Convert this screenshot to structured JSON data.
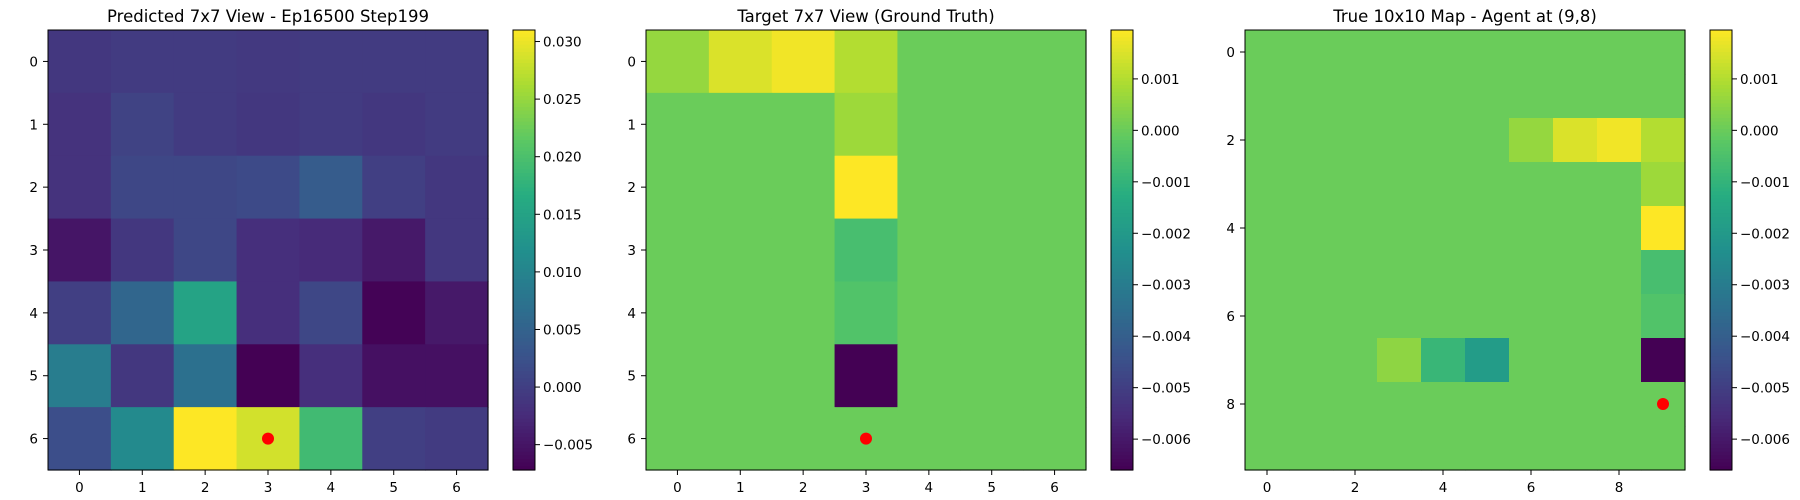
{
  "chart_data": [
    {
      "type": "heatmap",
      "title": "Predicted 7x7 View - Ep16500 Step199",
      "rows": 7,
      "cols": 7,
      "x_ticks": [
        "0",
        "1",
        "2",
        "3",
        "4",
        "5",
        "6"
      ],
      "y_ticks": [
        "0",
        "1",
        "2",
        "3",
        "4",
        "5",
        "6"
      ],
      "colorscale": "viridis",
      "vmin": -0.0072,
      "vmax": 0.031,
      "colorbar_ticks": [
        {
          "value": 0.03,
          "label": "0.030"
        },
        {
          "value": 0.025,
          "label": "0.025"
        },
        {
          "value": 0.02,
          "label": "0.020"
        },
        {
          "value": 0.015,
          "label": "0.015"
        },
        {
          "value": 0.01,
          "label": "0.010"
        },
        {
          "value": 0.005,
          "label": "0.005"
        },
        {
          "value": 0.0,
          "label": "0.000"
        },
        {
          "value": -0.005,
          "label": "−0.005"
        }
      ],
      "values": [
        [
          -0.001,
          -0.0005,
          -0.0005,
          -0.0008,
          -0.0005,
          -0.0005,
          -0.0005
        ],
        [
          -0.0015,
          0.0005,
          -0.0005,
          -0.001,
          -0.0005,
          -0.001,
          -0.0005
        ],
        [
          -0.0015,
          0.001,
          0.001,
          0.0015,
          0.004,
          0.0,
          -0.001
        ],
        [
          -0.005,
          -0.001,
          0.001,
          -0.002,
          -0.0025,
          -0.0045,
          -0.001
        ],
        [
          0.0,
          0.0055,
          0.015,
          -0.002,
          0.001,
          -0.007,
          -0.0045
        ],
        [
          0.009,
          -0.001,
          0.007,
          -0.0072,
          -0.002,
          -0.0055,
          -0.0055
        ],
        [
          0.002,
          0.011,
          0.031,
          0.0285,
          0.019,
          0.0,
          -0.0005
        ]
      ],
      "agent": {
        "x": 3,
        "y": 6
      }
    },
    {
      "type": "heatmap",
      "title": "Target 7x7 View (Ground Truth)",
      "rows": 7,
      "cols": 7,
      "x_ticks": [
        "0",
        "1",
        "2",
        "3",
        "4",
        "5",
        "6"
      ],
      "y_ticks": [
        "0",
        "1",
        "2",
        "3",
        "4",
        "5",
        "6"
      ],
      "colorscale": "viridis",
      "vmin": -0.0066,
      "vmax": 0.00195,
      "colorbar_ticks": [
        {
          "value": 0.001,
          "label": "0.001"
        },
        {
          "value": 0.0,
          "label": "0.000"
        },
        {
          "value": -0.001,
          "label": "−0.001"
        },
        {
          "value": -0.002,
          "label": "−0.002"
        },
        {
          "value": -0.003,
          "label": "−0.003"
        },
        {
          "value": -0.004,
          "label": "−0.004"
        },
        {
          "value": -0.005,
          "label": "−0.005"
        },
        {
          "value": -0.006,
          "label": "−0.006"
        }
      ],
      "values": [
        [
          0.0006,
          0.0015,
          0.0018,
          0.001,
          0.0,
          0.0,
          0.0
        ],
        [
          0.0,
          0.0,
          0.0,
          0.0007,
          0.0,
          0.0,
          0.0
        ],
        [
          0.0,
          0.0,
          0.0,
          0.00195,
          0.0,
          0.0,
          0.0
        ],
        [
          0.0,
          0.0,
          0.0,
          -0.0006,
          0.0,
          0.0,
          0.0
        ],
        [
          0.0,
          0.0,
          0.0,
          -0.0004,
          0.0,
          0.0,
          0.0
        ],
        [
          0.0,
          0.0,
          0.0,
          -0.0066,
          0.0,
          0.0,
          0.0
        ],
        [
          0.0,
          0.0,
          0.0,
          0.0,
          0.0,
          0.0,
          0.0
        ]
      ],
      "agent": {
        "x": 3,
        "y": 6
      }
    },
    {
      "type": "heatmap",
      "title": "True 10x10 Map - Agent at (9,8)",
      "rows": 10,
      "cols": 10,
      "x_ticks": [
        "0",
        "2",
        "4",
        "6",
        "8"
      ],
      "y_ticks": [
        "0",
        "2",
        "4",
        "6",
        "8"
      ],
      "tick_step": 2,
      "colorscale": "viridis",
      "vmin": -0.0066,
      "vmax": 0.00195,
      "colorbar_ticks": [
        {
          "value": 0.001,
          "label": "0.001"
        },
        {
          "value": 0.0,
          "label": "0.000"
        },
        {
          "value": -0.001,
          "label": "−0.001"
        },
        {
          "value": -0.002,
          "label": "−0.002"
        },
        {
          "value": -0.003,
          "label": "−0.003"
        },
        {
          "value": -0.004,
          "label": "−0.004"
        },
        {
          "value": -0.005,
          "label": "−0.005"
        },
        {
          "value": -0.006,
          "label": "−0.006"
        }
      ],
      "values": [
        [
          0,
          0,
          0,
          0,
          0,
          0,
          0,
          0,
          0,
          0
        ],
        [
          0,
          0,
          0,
          0,
          0,
          0,
          0,
          0,
          0,
          0
        ],
        [
          0,
          0,
          0,
          0,
          0,
          0,
          0.0006,
          0.0015,
          0.0018,
          0.001
        ],
        [
          0,
          0,
          0,
          0,
          0,
          0,
          0,
          0,
          0,
          0.0007
        ],
        [
          0,
          0,
          0,
          0,
          0,
          0,
          0,
          0,
          0,
          0.00195
        ],
        [
          0,
          0,
          0,
          0,
          0,
          0,
          0,
          0,
          0,
          -0.0006
        ],
        [
          0,
          0,
          0,
          0,
          0,
          0,
          0,
          0,
          0,
          -0.0004
        ],
        [
          0,
          0,
          0,
          0.0005,
          -0.0009,
          -0.0019,
          0,
          0,
          0,
          -0.0066
        ],
        [
          0,
          0,
          0,
          0,
          0,
          0,
          0,
          0,
          0,
          0
        ],
        [
          0,
          0,
          0,
          0,
          0,
          0,
          0,
          0,
          0,
          0
        ]
      ],
      "agent": {
        "x": 9,
        "y": 8
      }
    }
  ],
  "colors": {
    "agent_marker": "#ff0000",
    "axis": "#000000"
  }
}
